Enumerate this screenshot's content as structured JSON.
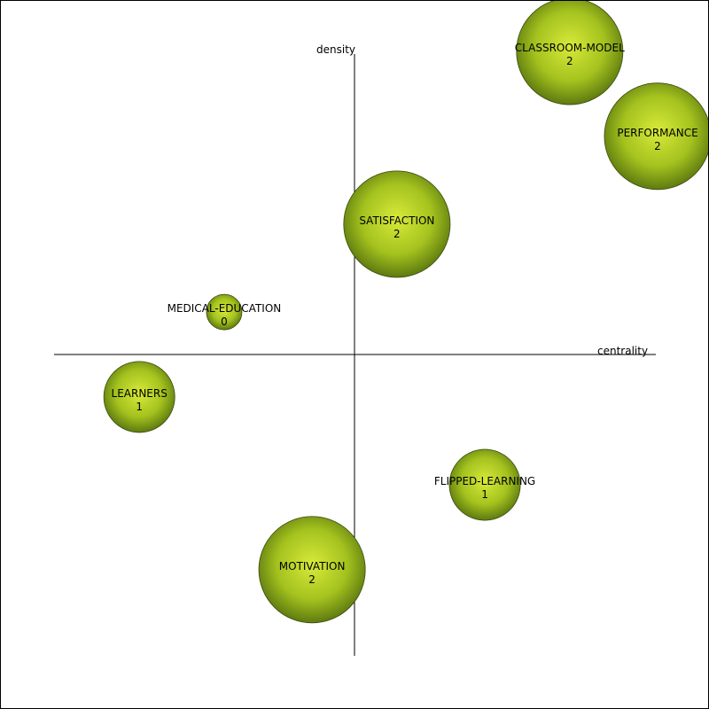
{
  "chart_data": {
    "type": "scatter",
    "title": "",
    "xlabel": "centrality",
    "ylabel": "density",
    "xlim": [
      -1,
      1
    ],
    "ylim": [
      -1,
      1
    ],
    "grid": false,
    "legend": "none",
    "size_field": "value",
    "colors": {
      "fill_light": "#d8ea3a",
      "fill_mid": "#a4c21e",
      "fill_dark": "#5e7a10",
      "outline": "#3a4a10"
    },
    "points": [
      {
        "label": "CLASSROOM-MODEL",
        "value": "2",
        "x": 0.71,
        "y": 1.0,
        "size": 2.1
      },
      {
        "label": "PERFORMANCE",
        "value": "2",
        "x": 1.0,
        "y": 0.72,
        "size": 2.1
      },
      {
        "label": "SATISFACTION",
        "value": "2",
        "x": 0.14,
        "y": 0.43,
        "size": 2.1
      },
      {
        "label": "MEDICAL-EDUCATION",
        "value": "0",
        "x": -0.43,
        "y": 0.14,
        "size": 0.7
      },
      {
        "label": "LEARNERS",
        "value": "1",
        "x": -0.71,
        "y": -0.14,
        "size": 1.4
      },
      {
        "label": "FLIPPED-LEARNING",
        "value": "1",
        "x": 0.43,
        "y": -0.43,
        "size": 1.4
      },
      {
        "label": "MOTIVATION",
        "value": "2",
        "x": -0.14,
        "y": -0.71,
        "size": 2.1
      }
    ]
  }
}
